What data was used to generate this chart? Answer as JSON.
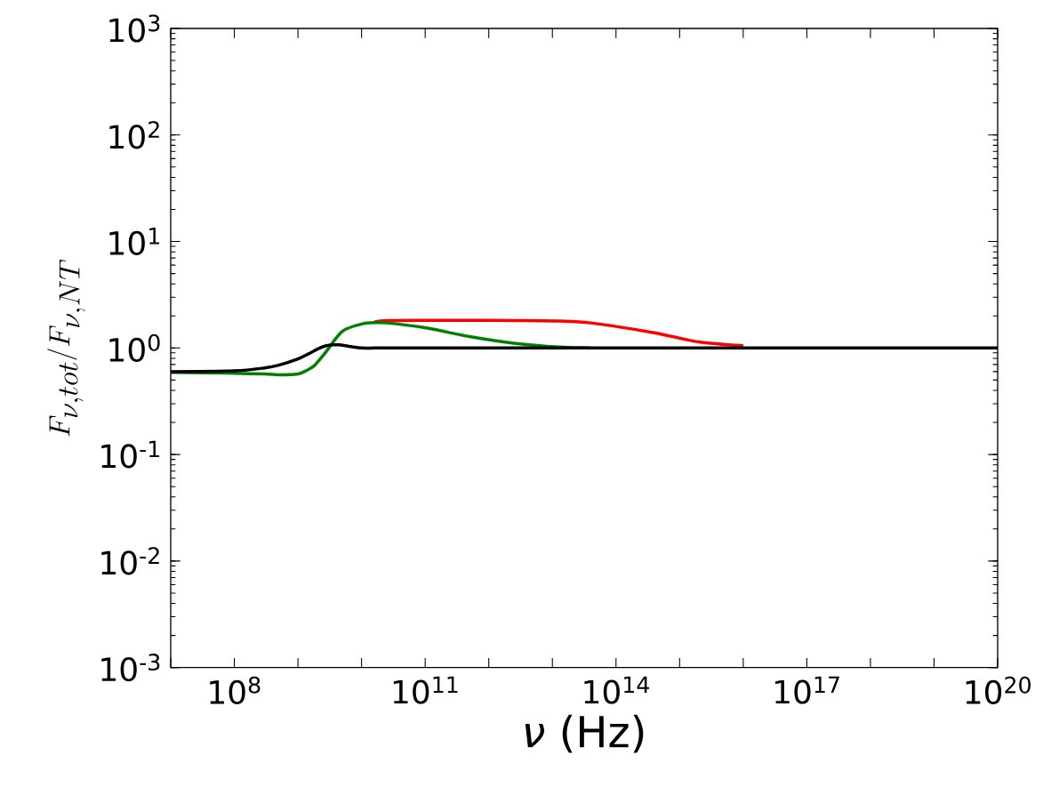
{
  "chart_data": {
    "type": "line",
    "xlabel": "*ν* (Hz)",
    "ylabel": "F_{\\nu,tot}/F_{\\nu,NT}",
    "log": "xy",
    "grid": false,
    "marker": "none",
    "line_style": "solid",
    "xlim": [
      10000000.0,
      1e+20
    ],
    "ylim": [
      0.001,
      1000
    ],
    "xticks": [
      {
        "value": 10000000.0,
        "label": null
      },
      {
        "value": 100000000.0,
        "label": "10$^{8}$"
      },
      {
        "value": 1000000000.0,
        "label": null
      },
      {
        "value": 10000000000.0,
        "label": null
      },
      {
        "value": 100000000000.0,
        "label": "10$^{11}$"
      },
      {
        "value": 1000000000000.0,
        "label": null
      },
      {
        "value": 10000000000000.0,
        "label": null
      },
      {
        "value": 100000000000000.0,
        "label": "10$^{14}$"
      },
      {
        "value": 1000000000000000.0,
        "label": null
      },
      {
        "value": 1e+16,
        "label": null
      },
      {
        "value": 1e+17,
        "label": "10$^{17}$"
      },
      {
        "value": 1e+18,
        "label": null
      },
      {
        "value": 1e+19,
        "label": null
      },
      {
        "value": 1e+20,
        "label": "10$^{20}$"
      }
    ],
    "yticks": [
      {
        "value": 0.001,
        "label": "10$^{-3}$"
      },
      {
        "value": 0.01,
        "label": "10$^{-2}$"
      },
      {
        "value": 0.1,
        "label": "10$^{-1}$"
      },
      {
        "value": 1,
        "label": "10$^{0}$"
      },
      {
        "value": 10,
        "label": "10$^{1}$"
      },
      {
        "value": 100,
        "label": "10$^{2}$"
      },
      {
        "value": 1000,
        "label": "10$^{3}$"
      }
    ],
    "x": [
      10000000.0,
      100000000.0,
      300000000.0,
      500000000.0,
      1000000000.0,
      1400000000.0,
      1800000000.0,
      2200000000.0,
      2800000000.0,
      3500000000.0,
      4500000000.0,
      5600000000.0,
      10000000000.0,
      16000000000.0,
      25000000000.0,
      100000000000.0,
      500000000000.0,
      2500000000000.0,
      13000000000000.0,
      40000000000000.0,
      400000000000000.0,
      2000000000000000.0,
      1e+16,
      5e+16,
      1e+20
    ],
    "series": [
      {
        "color": "#ff0000",
        "values": [
          null,
          null,
          null,
          null,
          null,
          null,
          null,
          null,
          null,
          null,
          null,
          null,
          null,
          1.76,
          1.81,
          1.82,
          1.82,
          1.81,
          1.79,
          1.72,
          1.39,
          1.14,
          1.05,
          null,
          null
        ]
      },
      {
        "color": "#008000",
        "values": [
          0.59,
          0.58,
          0.57,
          0.56,
          0.57,
          0.62,
          0.68,
          0.78,
          0.93,
          1.12,
          1.35,
          1.5,
          1.68,
          1.73,
          1.72,
          1.55,
          1.28,
          1.11,
          1.02,
          1.0,
          null,
          null,
          null,
          null,
          null
        ]
      },
      {
        "color": "#000000",
        "values": [
          0.6,
          0.61,
          0.65,
          0.69,
          0.79,
          0.87,
          0.94,
          1.0,
          1.05,
          1.07,
          1.07,
          1.05,
          1.0,
          1.0,
          1.0,
          1.0,
          1.0,
          1.0,
          1.0,
          1.0,
          1.0,
          1.0,
          1.0,
          1.0,
          1.0
        ]
      }
    ]
  }
}
